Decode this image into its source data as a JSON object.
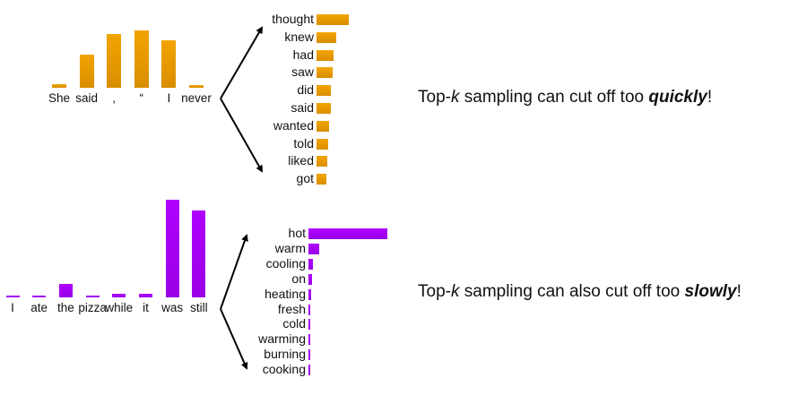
{
  "top_example": {
    "context": [
      {
        "word": "She",
        "prob": 0.06
      },
      {
        "word": "said",
        "prob": 0.53
      },
      {
        "word": ",",
        "prob": 0.86
      },
      {
        "word": "“",
        "prob": 0.92
      },
      {
        "word": "I",
        "prob": 0.76
      },
      {
        "word": "never",
        "prob": 0.05
      }
    ],
    "candidates": [
      {
        "word": "thought",
        "prob": 0.3
      },
      {
        "word": "knew",
        "prob": 0.18
      },
      {
        "word": "had",
        "prob": 0.16
      },
      {
        "word": "saw",
        "prob": 0.15
      },
      {
        "word": "did",
        "prob": 0.13
      },
      {
        "word": "said",
        "prob": 0.13
      },
      {
        "word": "wanted",
        "prob": 0.12
      },
      {
        "word": "told",
        "prob": 0.11
      },
      {
        "word": "liked",
        "prob": 0.1
      },
      {
        "word": "got",
        "prob": 0.09
      }
    ],
    "caption_prefix": "Top-",
    "caption_k": "k",
    "caption_middle": " sampling can cut off too ",
    "caption_emph": "quickly",
    "caption_suffix": "!"
  },
  "bottom_example": {
    "context": [
      {
        "word": "I",
        "prob": 0.01
      },
      {
        "word": "ate",
        "prob": 0.01
      },
      {
        "word": "the",
        "prob": 0.13
      },
      {
        "word": "pizza",
        "prob": 0.02
      },
      {
        "word": "while",
        "prob": 0.03
      },
      {
        "word": "it",
        "prob": 0.03
      },
      {
        "word": "was",
        "prob": 0.93
      },
      {
        "word": "still",
        "prob": 0.83
      }
    ],
    "candidates": [
      {
        "word": "hot",
        "prob": 0.88
      },
      {
        "word": "warm",
        "prob": 0.12
      },
      {
        "word": "cooling",
        "prob": 0.05
      },
      {
        "word": "on",
        "prob": 0.04
      },
      {
        "word": "heating",
        "prob": 0.03
      },
      {
        "word": "fresh",
        "prob": 0.015
      },
      {
        "word": "cold",
        "prob": 0.012
      },
      {
        "word": "warming",
        "prob": 0.01
      },
      {
        "word": "burning",
        "prob": 0.01
      },
      {
        "word": "cooking",
        "prob": 0.01
      }
    ],
    "caption_prefix": "Top-",
    "caption_k": "k",
    "caption_middle": " sampling can also cut off too ",
    "caption_emph": "slowly",
    "caption_suffix": "!"
  },
  "colors": {
    "orange": "#e89b00",
    "purple": "#a500f5",
    "arrow": "#000000"
  }
}
